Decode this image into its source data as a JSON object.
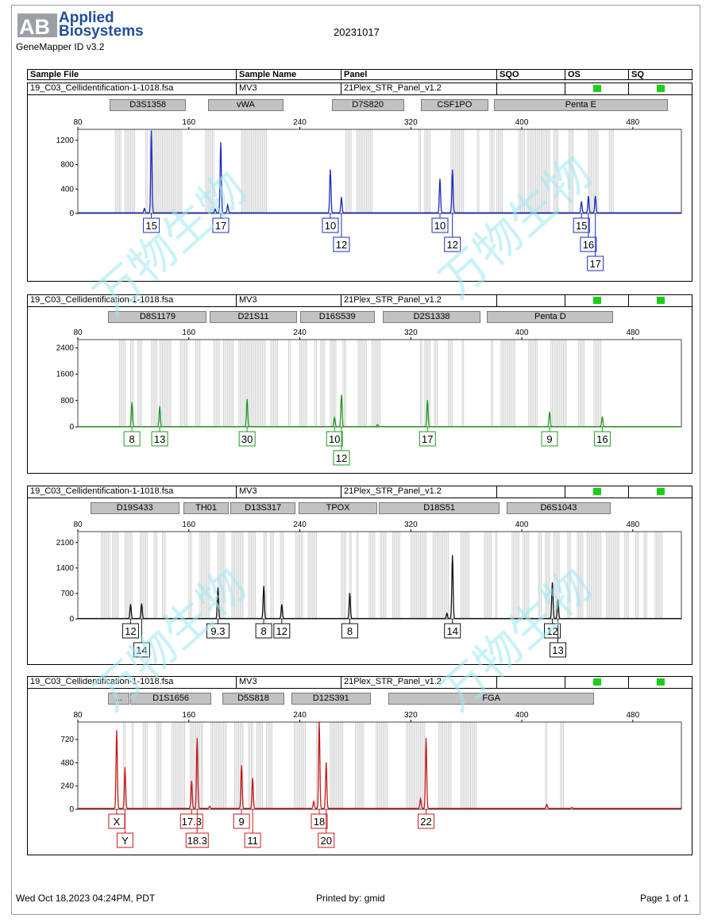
{
  "header": {
    "logo_mark": "AB",
    "logo_line1": "Applied",
    "logo_line2": "Biosystems",
    "software": "GeneMapper ID v3.2",
    "date": "20231017",
    "columns": [
      "Sample File",
      "Sample Name",
      "Panel",
      "SQO",
      "OS",
      "SQ"
    ],
    "status_color": "#1ccd1c"
  },
  "footer": {
    "timestamp": "Wed Oct 18,2023 04:24PM, PDT",
    "printed_by": "Printed by: gmid",
    "page": "Page 1 of 1"
  },
  "watermark": "万物生物",
  "chart_data": [
    {
      "type": "line",
      "color": "#1a2bbd",
      "sample_file": "19_C03_Cellidentification-1-1018.fsa",
      "sample_name": "MV3",
      "panel": "21Plex_STR_Panel_v1.2",
      "markers": [
        {
          "name": "D3S1358",
          "from": 103,
          "to": 158
        },
        {
          "name": "vWA",
          "from": 174,
          "to": 228
        },
        {
          "name": "D7S820",
          "from": 263,
          "to": 315
        },
        {
          "name": "CSF1PO",
          "from": 327,
          "to": 376
        },
        {
          "name": "Penta E",
          "from": 380,
          "to": 505
        }
      ],
      "x_ticks": [
        80,
        160,
        240,
        320,
        400,
        480
      ],
      "y_ticks": [
        0,
        400,
        800,
        1200
      ],
      "xlim": [
        80,
        515
      ],
      "ylim": [
        0,
        1380
      ],
      "bins": [
        [
          107,
          111
        ],
        [
          114,
          118
        ],
        [
          119,
          121
        ],
        [
          129,
          130
        ],
        [
          132,
          155
        ],
        [
          172,
          178
        ],
        [
          198,
          216
        ],
        [
          273,
          277
        ],
        [
          281,
          292
        ],
        [
          326,
          327
        ],
        [
          330,
          334
        ],
        [
          349,
          358
        ],
        [
          368,
          369
        ],
        [
          377,
          380
        ],
        [
          382,
          386
        ],
        [
          398,
          402
        ],
        [
          404,
          420
        ],
        [
          423,
          426
        ],
        [
          434,
          437
        ],
        [
          448,
          455
        ],
        [
          463,
          466
        ]
      ],
      "peaks": [
        {
          "x": 128,
          "y": 70
        },
        {
          "x": 133,
          "y": 1340
        },
        {
          "x": 179,
          "y": 60
        },
        {
          "x": 183,
          "y": 1150
        },
        {
          "x": 188,
          "y": 130
        },
        {
          "x": 262,
          "y": 700
        },
        {
          "x": 270,
          "y": 250
        },
        {
          "x": 341,
          "y": 550
        },
        {
          "x": 350,
          "y": 700
        },
        {
          "x": 443,
          "y": 180
        },
        {
          "x": 448,
          "y": 270
        },
        {
          "x": 453,
          "y": 270
        }
      ],
      "alleles": [
        {
          "label": "15",
          "x": 133,
          "tier": 0
        },
        {
          "label": "17",
          "x": 183,
          "tier": 0
        },
        {
          "label": "10",
          "x": 262,
          "tier": 0
        },
        {
          "label": "12",
          "x": 270,
          "tier": 1
        },
        {
          "label": "10",
          "x": 341,
          "tier": 0
        },
        {
          "label": "12",
          "x": 350,
          "tier": 1
        },
        {
          "label": "15",
          "x": 443,
          "tier": 0
        },
        {
          "label": "16",
          "x": 448,
          "tier": 1
        },
        {
          "label": "17",
          "x": 453,
          "tier": 2
        }
      ]
    },
    {
      "type": "line",
      "color": "#1f9a1f",
      "sample_file": "19_C03_Cellidentification-1-1018.fsa",
      "sample_name": "MV3",
      "panel": "21Plex_STR_Panel_v1.2",
      "markers": [
        {
          "name": "D8S1179",
          "from": 102,
          "to": 173
        },
        {
          "name": "D21S11",
          "from": 175,
          "to": 238
        },
        {
          "name": "D16S539",
          "from": 240,
          "to": 294
        },
        {
          "name": "D2S1338",
          "from": 300,
          "to": 370
        },
        {
          "name": "Penta D",
          "from": 375,
          "to": 466
        }
      ],
      "x_ticks": [
        80,
        160,
        240,
        320,
        400,
        480
      ],
      "y_ticks": [
        0,
        800,
        1600,
        2400
      ],
      "xlim": [
        80,
        515
      ],
      "ylim": [
        0,
        2650
      ],
      "bins": [
        [
          110,
          114
        ],
        [
          118,
          120
        ],
        [
          123,
          126
        ],
        [
          133,
          137
        ],
        [
          139,
          147
        ],
        [
          154,
          159
        ],
        [
          165,
          168
        ],
        [
          178,
          182
        ],
        [
          185,
          192
        ],
        [
          196,
          206
        ],
        [
          207,
          215
        ],
        [
          219,
          224
        ],
        [
          232,
          233
        ],
        [
          240,
          245
        ],
        [
          251,
          252
        ],
        [
          255,
          258
        ],
        [
          262,
          266
        ],
        [
          271,
          273
        ],
        [
          282,
          288
        ],
        [
          292,
          298
        ],
        [
          327,
          328
        ],
        [
          330,
          334
        ],
        [
          337,
          339
        ],
        [
          347,
          350
        ],
        [
          357,
          358
        ],
        [
          378,
          379
        ],
        [
          385,
          395
        ],
        [
          405,
          411
        ],
        [
          421,
          432
        ],
        [
          441,
          445
        ],
        [
          452,
          457
        ]
      ],
      "peaks": [
        {
          "x": 119,
          "y": 720
        },
        {
          "x": 139,
          "y": 600
        },
        {
          "x": 202,
          "y": 820
        },
        {
          "x": 265,
          "y": 270
        },
        {
          "x": 270,
          "y": 950
        },
        {
          "x": 296,
          "y": 60
        },
        {
          "x": 332,
          "y": 790
        },
        {
          "x": 420,
          "y": 430
        },
        {
          "x": 458,
          "y": 280
        }
      ],
      "alleles": [
        {
          "label": "8",
          "x": 119,
          "tier": 0
        },
        {
          "label": "13",
          "x": 139,
          "tier": 0
        },
        {
          "label": "30",
          "x": 202,
          "tier": 0
        },
        {
          "label": "10",
          "x": 265,
          "tier": 0
        },
        {
          "label": "12",
          "x": 270,
          "tier": 1
        },
        {
          "label": "17",
          "x": 332,
          "tier": 0
        },
        {
          "label": "9",
          "x": 420,
          "tier": 0
        },
        {
          "label": "16",
          "x": 458,
          "tier": 0
        }
      ]
    },
    {
      "type": "line",
      "color": "#111111",
      "sample_file": "19_C03_Cellidentification-1-1018.fsa",
      "sample_name": "MV3",
      "panel": "21Plex_STR_Panel_v1.2",
      "markers": [
        {
          "name": "D19S433",
          "from": 89,
          "to": 153
        },
        {
          "name": "TH01",
          "from": 156,
          "to": 189
        },
        {
          "name": "D13S317",
          "from": 190,
          "to": 237
        },
        {
          "name": "TPOX",
          "from": 239,
          "to": 296
        },
        {
          "name": "D18S51",
          "from": 297,
          "to": 384
        },
        {
          "name": "D6S1043",
          "from": 389,
          "to": 464
        }
      ],
      "x_ticks": [
        80,
        160,
        240,
        320,
        400,
        480
      ],
      "y_ticks": [
        0,
        700,
        1400,
        2100
      ],
      "xlim": [
        80,
        515
      ],
      "ylim": [
        0,
        2400
      ],
      "bins": [
        [
          97,
          99
        ],
        [
          100,
          103
        ],
        [
          105,
          109
        ],
        [
          114,
          119
        ],
        [
          125,
          130
        ],
        [
          135,
          137
        ],
        [
          141,
          143
        ],
        [
          160,
          162
        ],
        [
          168,
          175
        ],
        [
          181,
          186
        ],
        [
          191,
          199
        ],
        [
          203,
          208
        ],
        [
          214,
          216
        ],
        [
          219,
          221
        ],
        [
          226,
          228
        ],
        [
          237,
          242
        ],
        [
          246,
          252
        ],
        [
          270,
          273
        ],
        [
          276,
          277
        ],
        [
          281,
          282
        ],
        [
          290,
          294
        ],
        [
          298,
          302
        ],
        [
          307,
          312
        ],
        [
          320,
          331
        ],
        [
          336,
          347
        ],
        [
          356,
          362
        ],
        [
          373,
          378
        ],
        [
          381,
          382
        ],
        [
          393,
          398
        ],
        [
          401,
          405
        ],
        [
          412,
          414
        ],
        [
          417,
          420
        ],
        [
          423,
          427
        ],
        [
          433,
          435
        ],
        [
          440,
          444
        ],
        [
          447,
          457
        ],
        [
          461,
          465
        ],
        [
          466,
          470
        ],
        [
          474,
          477
        ],
        [
          482,
          484
        ],
        [
          488,
          490
        ],
        [
          496,
          501
        ]
      ],
      "peaks": [
        {
          "x": 118,
          "y": 380
        },
        {
          "x": 126,
          "y": 400
        },
        {
          "x": 181,
          "y": 840
        },
        {
          "x": 214,
          "y": 880
        },
        {
          "x": 227,
          "y": 380
        },
        {
          "x": 276,
          "y": 690
        },
        {
          "x": 346,
          "y": 140
        },
        {
          "x": 350,
          "y": 1730
        },
        {
          "x": 422,
          "y": 980
        },
        {
          "x": 426,
          "y": 510
        }
      ],
      "alleles": [
        {
          "label": "12",
          "x": 118,
          "tier": 0
        },
        {
          "label": "14",
          "x": 126,
          "tier": 1
        },
        {
          "label": "9.3",
          "x": 181,
          "tier": 0
        },
        {
          "label": "8",
          "x": 214,
          "tier": 0
        },
        {
          "label": "12",
          "x": 227,
          "tier": 0
        },
        {
          "label": "8",
          "x": 276,
          "tier": 0
        },
        {
          "label": "14",
          "x": 350,
          "tier": 0
        },
        {
          "label": "12",
          "x": 422,
          "tier": 0
        },
        {
          "label": "13",
          "x": 426,
          "tier": 1
        }
      ]
    },
    {
      "type": "line",
      "color": "#c41a1a",
      "sample_file": "19_C03_Cellidentification-1-1018.fsa",
      "sample_name": "MV3",
      "panel": "21Plex_STR_Panel_v1.2",
      "markers": [
        {
          "name": "...",
          "from": 102,
          "to": 117
        },
        {
          "name": "D1S1656",
          "from": 118,
          "to": 176
        },
        {
          "name": "D5S818",
          "from": 184,
          "to": 229
        },
        {
          "name": "D12S391",
          "from": 234,
          "to": 291
        },
        {
          "name": "FGA",
          "from": 304,
          "to": 452
        }
      ],
      "x_ticks": [
        80,
        160,
        240,
        320,
        400,
        480
      ],
      "y_ticks": [
        0,
        240,
        480,
        720
      ],
      "xlim": [
        80,
        515
      ],
      "ylim": [
        0,
        900
      ],
      "bins": [
        [
          113,
          114
        ],
        [
          119,
          120
        ],
        [
          127,
          130
        ],
        [
          137,
          140
        ],
        [
          148,
          151
        ],
        [
          152,
          157
        ],
        [
          161,
          170
        ],
        [
          176,
          187
        ],
        [
          193,
          199
        ],
        [
          203,
          206
        ],
        [
          209,
          213
        ],
        [
          216,
          220
        ],
        [
          236,
          244
        ],
        [
          252,
          253
        ],
        [
          262,
          271
        ],
        [
          280,
          286
        ],
        [
          295,
          303
        ],
        [
          317,
          330
        ],
        [
          340,
          349
        ],
        [
          356,
          367
        ],
        [
          417,
          418
        ],
        [
          428,
          430
        ]
      ],
      "peaks": [
        {
          "x": 108,
          "y": 800
        },
        {
          "x": 114,
          "y": 420
        },
        {
          "x": 162,
          "y": 280
        },
        {
          "x": 166,
          "y": 720
        },
        {
          "x": 175,
          "y": 20
        },
        {
          "x": 198,
          "y": 440
        },
        {
          "x": 206,
          "y": 310
        },
        {
          "x": 250,
          "y": 70
        },
        {
          "x": 254,
          "y": 890
        },
        {
          "x": 259,
          "y": 470
        },
        {
          "x": 327,
          "y": 100
        },
        {
          "x": 331,
          "y": 720
        },
        {
          "x": 418,
          "y": 40
        },
        {
          "x": 436,
          "y": 8
        }
      ],
      "alleles": [
        {
          "label": "X",
          "x": 108,
          "tier": 0
        },
        {
          "label": "Y",
          "x": 114,
          "tier": 1
        },
        {
          "label": "17.3",
          "x": 162,
          "tier": 0
        },
        {
          "label": "18.3",
          "x": 166,
          "tier": 1
        },
        {
          "label": "9",
          "x": 198,
          "tier": 0
        },
        {
          "label": "11",
          "x": 206,
          "tier": 1
        },
        {
          "label": "18",
          "x": 254,
          "tier": 0
        },
        {
          "label": "20",
          "x": 259,
          "tier": 1
        },
        {
          "label": "22",
          "x": 331,
          "tier": 0
        }
      ]
    }
  ]
}
